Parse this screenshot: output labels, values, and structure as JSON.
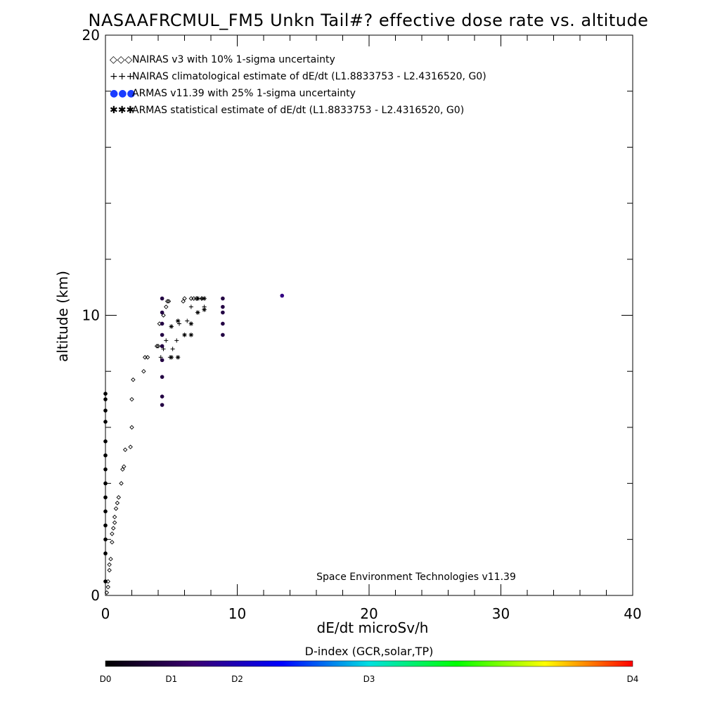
{
  "chart_data": {
    "type": "scatter",
    "title": "NASAAFRCMUL_FM5 Unkn Tail#? effective dose rate vs. altitude",
    "xlabel": "dE/dt microSv/h",
    "ylabel": "altitude (km)",
    "xlim": [
      0,
      40
    ],
    "ylim": [
      0,
      20
    ],
    "x_ticks": [
      0,
      10,
      20,
      30,
      40
    ],
    "y_ticks": [
      0,
      10,
      20
    ],
    "x_minor_step": 2,
    "y_minor_step": 2,
    "grid": false,
    "legend_position": "top-left",
    "footnote": "Space Environment Technologies v11.39",
    "colorbar": {
      "label": "D-index (GCR,solar,TP)",
      "ticks": [
        {
          "label": "D0",
          "value": 0
        },
        {
          "label": "D1",
          "value": 1
        },
        {
          "label": "D2",
          "value": 2
        },
        {
          "label": "D3",
          "value": 3
        },
        {
          "label": "D4",
          "value": 4
        }
      ],
      "tick_fractions": [
        0,
        0.125,
        0.25,
        0.5,
        1.0
      ],
      "colors": [
        "#000000",
        "#3a0070",
        "#0000ff",
        "#00e0e0",
        "#00ff00",
        "#ffff00",
        "#ff0000"
      ]
    },
    "series": [
      {
        "name": "NAIRAS v3 with 10% 1-sigma uncertainty",
        "marker": "diamond",
        "color": "#000000",
        "x": [
          0.1,
          0.2,
          0.2,
          0.3,
          0.3,
          0.4,
          0.5,
          0.5,
          0.6,
          0.7,
          0.7,
          0.8,
          0.9,
          1.0,
          1.2,
          1.3,
          1.4,
          1.5,
          1.9,
          2.0,
          2.0,
          2.1,
          2.9,
          3.0,
          3.2,
          3.9,
          4.0,
          4.1,
          4.4,
          4.6,
          4.7,
          4.8,
          5.9,
          6.0,
          6.5,
          6.7,
          6.9,
          7.3
        ],
        "y": [
          0.1,
          0.3,
          0.5,
          0.9,
          1.1,
          1.3,
          1.9,
          2.2,
          2.4,
          2.6,
          2.8,
          3.1,
          3.3,
          3.5,
          4.0,
          4.5,
          4.6,
          5.2,
          5.3,
          6.0,
          7.0,
          7.7,
          8.0,
          8.5,
          8.5,
          8.9,
          8.9,
          9.7,
          10.0,
          10.3,
          10.5,
          10.5,
          10.5,
          10.6,
          10.6,
          10.6,
          10.6,
          10.6
        ]
      },
      {
        "name": "NAIRAS climatological estimate of dE/dt (L1.8833753 - L2.4316520, G0)",
        "marker": "plus",
        "color": "#000000",
        "x": [
          4.2,
          4.4,
          4.6,
          4.9,
          5.1,
          5.4,
          5.6,
          6.2,
          6.5,
          7.0,
          7.3,
          7.5
        ],
        "y": [
          8.5,
          8.8,
          9.1,
          8.5,
          8.8,
          9.1,
          9.7,
          9.8,
          10.3,
          10.6,
          10.6,
          10.3
        ],
        "values_estimated": true
      },
      {
        "name": "ARMAS v11.39 with 25% 1-sigma uncertainty",
        "marker": "dot",
        "x": [
          0.0,
          0.0,
          0.0,
          0.0,
          0.0,
          0.0,
          0.0,
          0.0,
          0.0,
          0.0,
          0.0,
          0.0,
          0.0,
          0.0,
          4.3,
          4.3,
          4.3,
          4.3,
          4.3,
          4.3,
          4.3,
          4.3,
          4.3,
          8.9,
          8.9,
          8.9,
          8.9,
          8.9,
          13.4
        ],
        "y": [
          0.5,
          1.5,
          2.5,
          3.5,
          4.5,
          5.5,
          6.2,
          6.6,
          7.0,
          7.2,
          5.0,
          4.0,
          3.0,
          2.0,
          6.8,
          7.1,
          7.8,
          8.4,
          8.9,
          9.3,
          9.7,
          10.1,
          10.6,
          9.3,
          9.7,
          10.1,
          10.3,
          10.6,
          10.7
        ],
        "d_index": [
          0,
          0,
          0,
          0,
          0,
          0,
          0,
          0,
          0,
          0,
          0,
          0,
          0,
          0,
          0.8,
          0.8,
          0.8,
          0.8,
          0.8,
          0.8,
          0.8,
          0.8,
          0.8,
          0.8,
          0.8,
          0.8,
          0.8,
          0.8,
          1.5
        ]
      },
      {
        "name": "ARMAS statistical estimate of dE/dt (L1.8833753 - L2.4316520, G0)",
        "marker": "asterisk",
        "color": "#000000",
        "x": [
          5.0,
          5.5,
          6.0,
          6.5,
          7.0,
          7.5,
          7.5,
          7.0,
          6.5,
          5.5,
          5.0
        ],
        "y": [
          8.5,
          8.5,
          9.3,
          9.3,
          10.6,
          10.6,
          10.2,
          10.1,
          9.7,
          9.8,
          9.6
        ],
        "values_estimated": true
      }
    ],
    "legend": [
      {
        "label": "NAIRAS v3 with 10% 1-sigma uncertainty",
        "symbol": "◇◇◇",
        "color": "#000000"
      },
      {
        "label": "NAIRAS climatological estimate of dE/dt (L1.8833753 - L2.4316520, G0)",
        "symbol": "+++",
        "color": "#000000"
      },
      {
        "label": "ARMAS v11.39 with 25% 1-sigma uncertainty",
        "symbol": "●●●",
        "color": "#1a3cff"
      },
      {
        "label": "ARMAS statistical estimate of dE/dt (L1.8833753 - L2.4316520, G0)",
        "symbol": "✱✱✱",
        "color": "#000000"
      }
    ]
  }
}
